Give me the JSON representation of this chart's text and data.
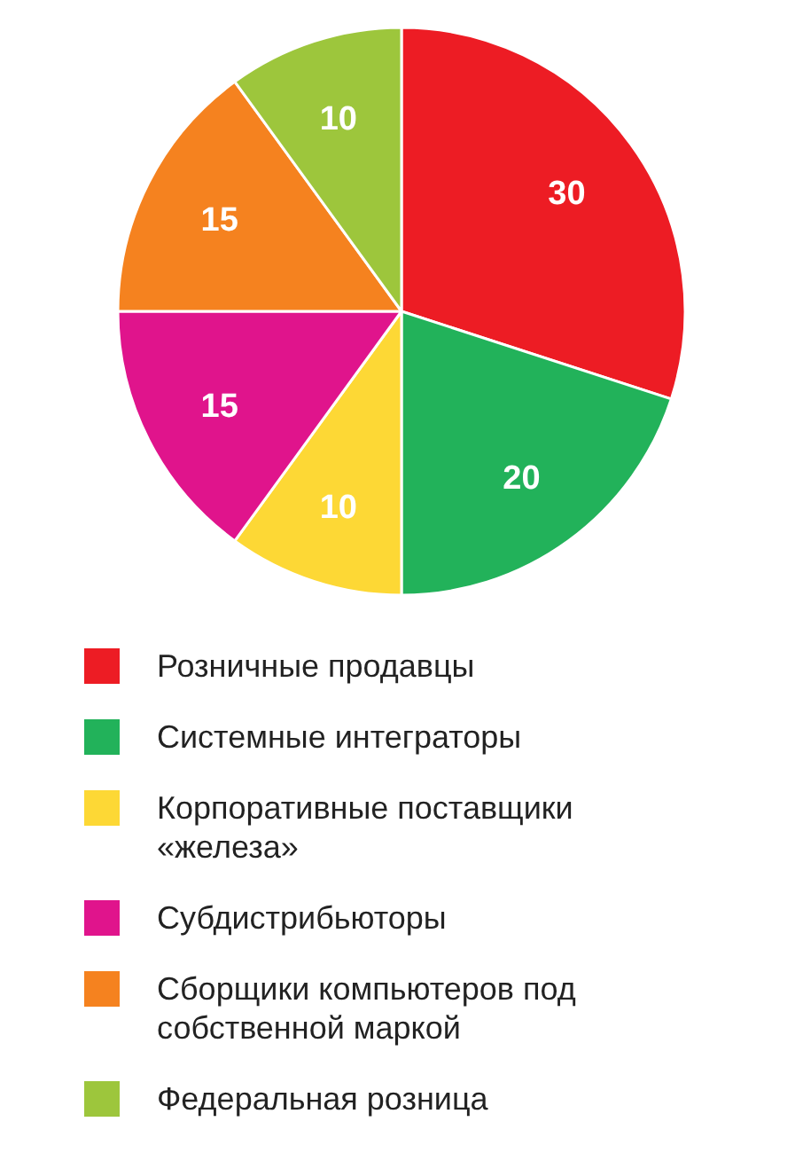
{
  "chart_data": {
    "type": "pie",
    "categories": [
      "Розничные продавцы",
      "Системные интеграторы",
      "Корпоративные поставщики «железа»",
      "Субдистрибьюторы",
      "Сборщики компьютеров под собственной маркой",
      "Федеральная розница"
    ],
    "values": [
      30,
      20,
      10,
      15,
      15,
      10
    ],
    "colors": [
      "#ed1c24",
      "#22b25a",
      "#fdd835",
      "#e0148c",
      "#f5821f",
      "#9dc63c"
    ],
    "data_labels": true,
    "legend": "bottom"
  }
}
